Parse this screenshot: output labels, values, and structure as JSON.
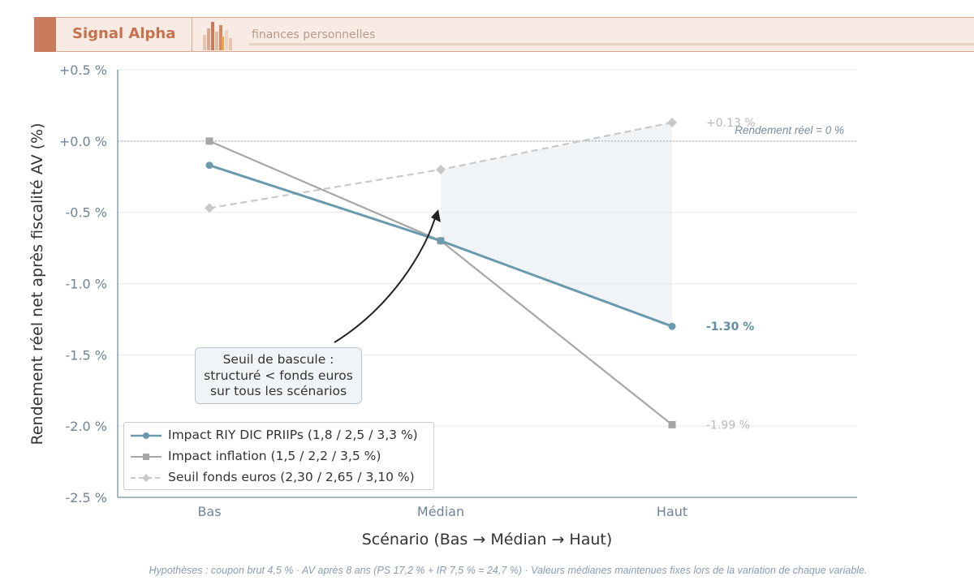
{
  "header": {
    "brand_name": "Signal Alpha",
    "tagline": "finances personnelles",
    "accent_color": "#c97b5d"
  },
  "footer": {
    "note": "Hypothèses : coupon brut 4,5 % · AV après 8 ans (PS 17,2 % + IR 7,5 % = 24,7 %) · Valeurs médianes maintenues fixes lors de la variation de chaque variable."
  },
  "callout": {
    "lines": [
      "Seuil de bascule :",
      "structuré < fonds euros",
      "sur tous les scénarios"
    ]
  },
  "chart_data": {
    "type": "line",
    "title": "",
    "xlabel": "Scénario (Bas → Médian → Haut)",
    "ylabel": "Rendement réel net après fiscalité AV (%)",
    "categories": [
      "Bas",
      "Médian",
      "Haut"
    ],
    "ylim": [
      -2.5,
      0.5
    ],
    "yticks": [
      {
        "value": 0.5,
        "label": "+0.5 %"
      },
      {
        "value": 0.0,
        "label": "+0.0 %"
      },
      {
        "value": -0.5,
        "label": "-0.5 %"
      },
      {
        "value": -1.0,
        "label": "-1.0 %"
      },
      {
        "value": -1.5,
        "label": "-1.5 %"
      },
      {
        "value": -2.0,
        "label": "-2.0 %"
      },
      {
        "value": -2.5,
        "label": "-2.5 %"
      }
    ],
    "grid": true,
    "legend_position": "bottom-left",
    "series": [
      {
        "name": "Impact RIY DIC PRIIPs (1,8 / 2,5 / 3,3 %)",
        "values": [
          -0.17,
          -0.7,
          -1.3
        ],
        "color": "#6a9aab",
        "marker": "circle",
        "style": "solid",
        "end_label": "-1.30 %"
      },
      {
        "name": "Impact inflation (1,5 / 2,2 / 3,5 %)",
        "values": [
          0.0,
          -0.7,
          -1.99
        ],
        "color": "#a6a6a6",
        "marker": "square",
        "style": "solid",
        "end_label": "-1.99 %"
      },
      {
        "name": "Seuil fonds euros (2,30 / 2,65 / 3,10 %)",
        "values": [
          -0.47,
          -0.2,
          0.13
        ],
        "color": "#c8c8c8",
        "marker": "diamond",
        "style": "dashed",
        "end_label": "+0.13 %"
      }
    ],
    "reference_line": {
      "value": 0,
      "label": "Rendement réel = 0 %"
    },
    "shaded_region": {
      "between": [
        "Seuil fonds euros (2,30 / 2,65 / 3,10 %)",
        "Impact RIY DIC PRIIPs (1,8 / 2,5 / 3,3 %)"
      ],
      "from_category": "Médian",
      "to_category": "Haut",
      "color": "#e6edf0"
    }
  }
}
